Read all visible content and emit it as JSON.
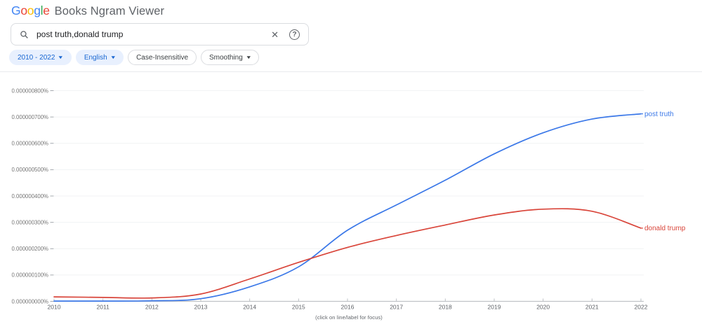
{
  "header": {
    "logo": {
      "letters": [
        {
          "ch": "G",
          "color": "#4285F4"
        },
        {
          "ch": "o",
          "color": "#EA4335"
        },
        {
          "ch": "o",
          "color": "#FBBC05"
        },
        {
          "ch": "g",
          "color": "#4285F4"
        },
        {
          "ch": "l",
          "color": "#34A853"
        },
        {
          "ch": "e",
          "color": "#EA4335"
        }
      ]
    },
    "title": "Books Ngram Viewer"
  },
  "search": {
    "query": "post truth,donald trump",
    "clear_icon": "✕",
    "help_icon": "?"
  },
  "filters": [
    {
      "label": "2010 - 2022",
      "dropdown": "▼",
      "active": true
    },
    {
      "label": "English",
      "dropdown": "▼",
      "active": true
    },
    {
      "label": "Case-Insensitive",
      "dropdown": "",
      "active": false
    },
    {
      "label": "Smoothing",
      "dropdown": "▼",
      "active": false
    }
  ],
  "chart_data": {
    "type": "line",
    "title": "",
    "x": [
      2010,
      2011,
      2012,
      2013,
      2014,
      2015,
      2016,
      2017,
      2018,
      2019,
      2020,
      2021,
      2022
    ],
    "xtick_labels": [
      "2010",
      "2011",
      "2012",
      "2013",
      "2014",
      "2015",
      "2016",
      "2017",
      "2018",
      "2019",
      "2020",
      "2021",
      "2022"
    ],
    "ytick_labels": [
      "0.000000000%",
      "0.000000100%",
      "0.000000200%",
      "0.000000300%",
      "0.000000400%",
      "0.000000500%",
      "0.000000600%",
      "0.000000700%",
      "0.000000800%"
    ],
    "ylim": [
      0,
      8e-07
    ],
    "xlim": [
      2010,
      2022
    ],
    "grid": true,
    "legend_position": "end-of-line-labels",
    "series": [
      {
        "name": "post truth",
        "color": "#3b78e8",
        "values": [
          1e-09,
          1e-09,
          2e-09,
          1e-08,
          5.5e-08,
          1.31e-07,
          2.7e-07,
          3.66e-07,
          4.6e-07,
          5.6e-07,
          6.4e-07,
          6.92e-07,
          7.12e-07
        ]
      },
      {
        "name": "donald trump",
        "color": "#d9453a",
        "values": [
          1.7e-08,
          1.5e-08,
          1.3e-08,
          2.8e-08,
          8.5e-08,
          1.48e-07,
          2.05e-07,
          2.5e-07,
          2.9e-07,
          3.28e-07,
          3.5e-07,
          3.42e-07,
          2.78e-07
        ]
      }
    ],
    "note": "(click on line/label for focus)"
  },
  "colors": {
    "chip_active_bg": "#e8f0fe",
    "chip_active_text": "#1967d2",
    "axis": "#c0c3c7",
    "gridline": "#f1f3f4",
    "tick_label": "#757575",
    "year_label": "#5f6368"
  }
}
